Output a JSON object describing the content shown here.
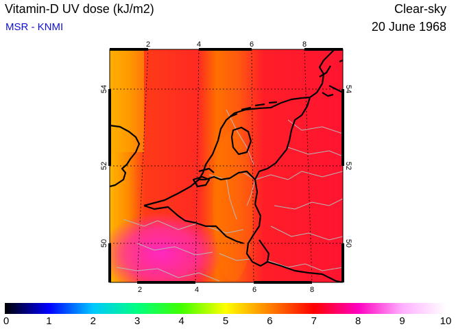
{
  "title": "Vitamin-D UV dose (kJ/m2)",
  "source": "MSR - KNMI",
  "sky_condition": "Clear-sky",
  "date": "20 June 1968",
  "map": {
    "lon_range": [
      1,
      9
    ],
    "lat_range": [
      49,
      55
    ],
    "lon_ticks": [
      "2",
      "4",
      "6",
      "8"
    ],
    "lat_ticks": [
      "50",
      "52",
      "54"
    ],
    "gridlines": true
  },
  "colorbar": {
    "min": 0,
    "max": 10,
    "labels": [
      "0",
      "1",
      "2",
      "3",
      "4",
      "5",
      "6",
      "7",
      "8",
      "9",
      "10"
    ],
    "colors": [
      "#000000",
      "#0000ff",
      "#00c8ff",
      "#00ff80",
      "#40ff00",
      "#ffff00",
      "#ff8000",
      "#ff0000",
      "#ff00c0",
      "#ffb0ff",
      "#ffffff"
    ]
  },
  "dose_field_colors": {
    "west_edge": "#ffb000",
    "band_orange": "#ff7a00",
    "red": "#ff1e28",
    "magenta": "#ff30a0"
  }
}
